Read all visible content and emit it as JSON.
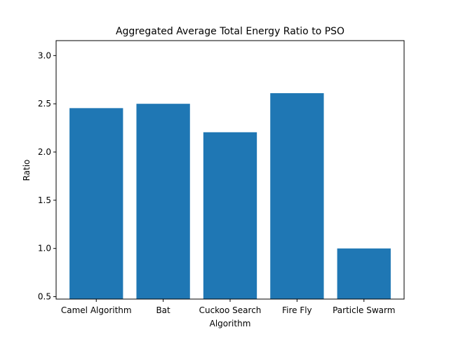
{
  "chart_data": {
    "type": "bar",
    "title": "Aggregated Average Total Energy Ratio to PSO",
    "xlabel": "Algorithm",
    "ylabel": "Ratio",
    "categories": [
      "Camel Algorithm",
      "Bat",
      "Cuckoo Search",
      "Fire Fly",
      "Particle Swarm"
    ],
    "values": [
      2.455,
      2.5,
      2.205,
      2.61,
      1.0
    ],
    "ylim": [
      0.475,
      3.155
    ],
    "yticks": [
      "0.5",
      "1.0",
      "1.5",
      "2.0",
      "2.5",
      "3.0"
    ],
    "grid": false,
    "legend": "none",
    "bar_color": "#1f77b4"
  }
}
